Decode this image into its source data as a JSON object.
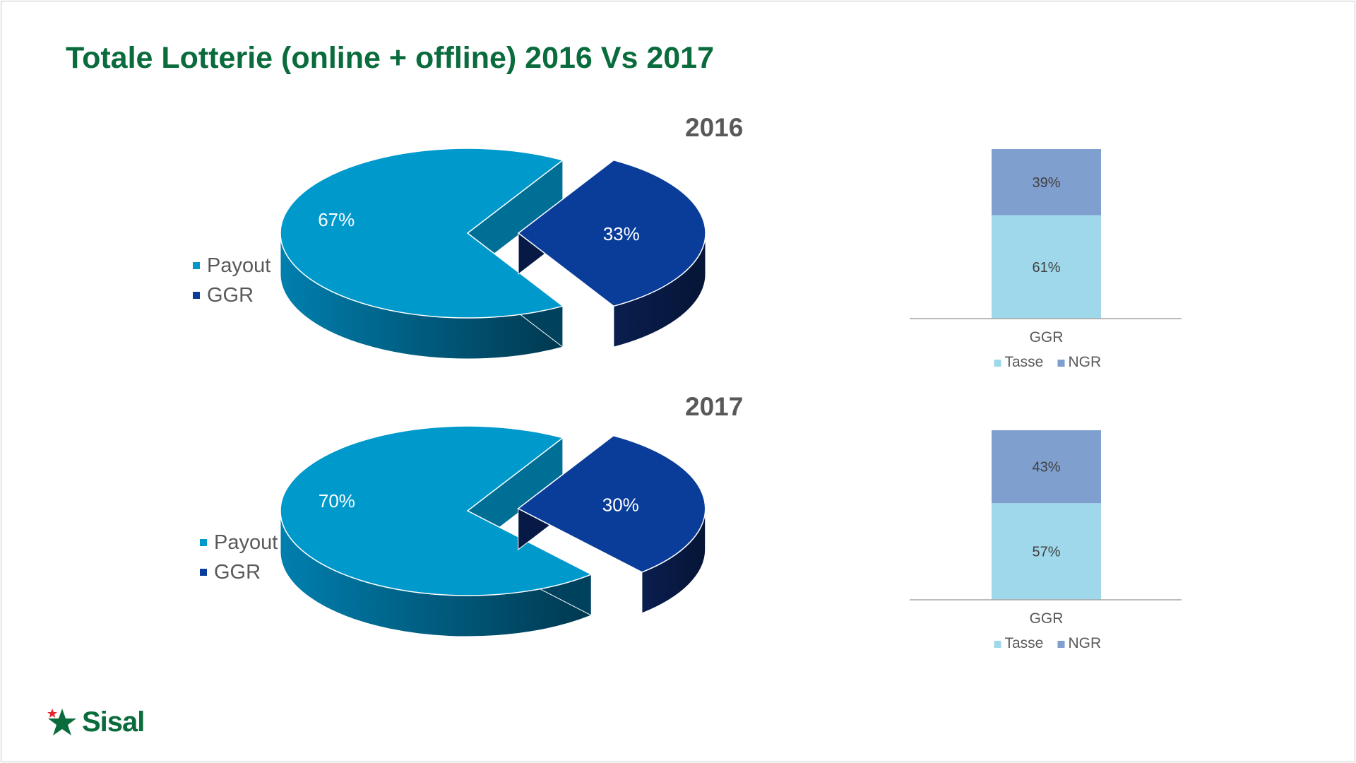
{
  "title": "Totale Lotterie (online + offline) 2016 Vs 2017",
  "colors": {
    "payout": "#0099cc",
    "ggr": "#0a3d99",
    "tasse": "#9fd8ea",
    "ngr": "#7f9fce",
    "brand": "#0a6b3c"
  },
  "logo": {
    "text": "Sisal",
    "icon": "star-icon"
  },
  "chart_data": [
    {
      "type": "pie",
      "title": "2016",
      "labels": [
        "Payout",
        "GGR"
      ],
      "values": [
        67,
        33
      ],
      "data_labels": [
        "67%",
        "33%"
      ],
      "legend": {
        "position": "left",
        "entries": [
          "Payout",
          "GGR"
        ]
      },
      "style": "3d-exploded"
    },
    {
      "type": "bar",
      "stacked": true,
      "categories": [
        "GGR"
      ],
      "series": [
        {
          "name": "Tasse",
          "values": [
            61
          ],
          "label": "61%"
        },
        {
          "name": "NGR",
          "values": [
            39
          ],
          "label": "39%"
        }
      ],
      "ylim": [
        0,
        100
      ],
      "legend": {
        "position": "bottom"
      }
    },
    {
      "type": "pie",
      "title": "2017",
      "labels": [
        "Payout",
        "GGR"
      ],
      "values": [
        70,
        30
      ],
      "data_labels": [
        "70%",
        "30%"
      ],
      "legend": {
        "position": "left",
        "entries": [
          "Payout",
          "GGR"
        ]
      },
      "style": "3d-exploded"
    },
    {
      "type": "bar",
      "stacked": true,
      "categories": [
        "GGR"
      ],
      "series": [
        {
          "name": "Tasse",
          "values": [
            57
          ],
          "label": "57%"
        },
        {
          "name": "NGR",
          "values": [
            43
          ],
          "label": "43%"
        }
      ],
      "ylim": [
        0,
        100
      ],
      "legend": {
        "position": "bottom"
      }
    }
  ]
}
